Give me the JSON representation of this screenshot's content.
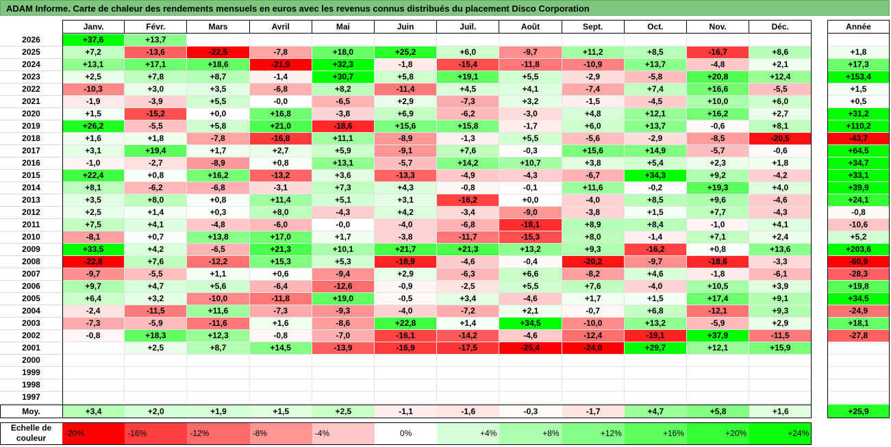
{
  "title": "ADAM Informe. Carte de chaleur des rendements mensuels en euros avec les revenus connus distribués du placement Disco Corporation",
  "chart_data": {
    "type": "heatmap",
    "columns": [
      "Janv.",
      "Févr.",
      "Mars",
      "Avril",
      "Mai",
      "Juin",
      "Juil.",
      "Août",
      "Sept.",
      "Oct.",
      "Nov.",
      "Déc."
    ],
    "year_column": "Année",
    "avg_row_label": "Moy.",
    "rows": [
      {
        "year": "2026",
        "months": [
          "+37,6",
          "+13,7",
          "",
          "",
          "",
          "",
          "",
          "",
          "",
          "",
          "",
          ""
        ],
        "annual": ""
      },
      {
        "year": "2025",
        "months": [
          "+7,2",
          "-13,6",
          "-22,5",
          "-7,8",
          "+18,0",
          "+25,2",
          "+6,0",
          "-9,7",
          "+11,2",
          "+8,5",
          "-16,7",
          "+8,6"
        ],
        "annual": "+1,8"
      },
      {
        "year": "2024",
        "months": [
          "+13,1",
          "+17,1",
          "+18,6",
          "-21,9",
          "+32,3",
          "-1,8",
          "-15,4",
          "-11,8",
          "-10,9",
          "+13,7",
          "-4,8",
          "+2,1"
        ],
        "annual": "+17,3"
      },
      {
        "year": "2023",
        "months": [
          "+2,5",
          "+7,8",
          "+8,7",
          "-1,4",
          "+30,7",
          "+5,8",
          "+19,1",
          "+5,5",
          "-2,9",
          "-5,8",
          "+20,8",
          "+12,4"
        ],
        "annual": "+153,4"
      },
      {
        "year": "2022",
        "months": [
          "-10,3",
          "+3,0",
          "+3,5",
          "-6,8",
          "+8,2",
          "-11,4",
          "+4,5",
          "+4,1",
          "-7,4",
          "+7,4",
          "+16,6",
          "-5,5"
        ],
        "annual": "+1,5"
      },
      {
        "year": "2021",
        "months": [
          "-1,9",
          "-3,9",
          "+5,5",
          "-0,0",
          "-6,5",
          "+2,9",
          "-7,3",
          "+3,2",
          "-1,5",
          "-4,5",
          "+10,0",
          "+6,0"
        ],
        "annual": "+0,5"
      },
      {
        "year": "2020",
        "months": [
          "+1,5",
          "-15,2",
          "+0,0",
          "+16,8",
          "-3,8",
          "+6,9",
          "-6,2",
          "-3,0",
          "+4,8",
          "+12,1",
          "+16,2",
          "+2,7"
        ],
        "annual": "+31,2"
      },
      {
        "year": "2019",
        "months": [
          "+26,2",
          "-5,5",
          "+5,8",
          "+21,0",
          "-18,6",
          "+15,6",
          "+15,8",
          "-1,7",
          "+6,0",
          "+13,7",
          "-0,6",
          "+8,1"
        ],
        "annual": "+110,2"
      },
      {
        "year": "2018",
        "months": [
          "+1,6",
          "+1,8",
          "-7,8",
          "-16,8",
          "+11,1",
          "-8,9",
          "-1,3",
          "+5,5",
          "-5,6",
          "-2,9",
          "-8,5",
          "-20,5"
        ],
        "annual": "-43,7"
      },
      {
        "year": "2017",
        "months": [
          "+3,1",
          "+19,4",
          "+1,7",
          "+2,7",
          "+5,9",
          "-9,1",
          "+7,6",
          "-0,3",
          "+15,6",
          "+14,9",
          "-5,7",
          "-0,6"
        ],
        "annual": "+64,5"
      },
      {
        "year": "2016",
        "months": [
          "-1,0",
          "-2,7",
          "-8,9",
          "+0,8",
          "+13,1",
          "-5,7",
          "+14,2",
          "+10,7",
          "+3,8",
          "+5,4",
          "+2,3",
          "+1,8"
        ],
        "annual": "+34,7"
      },
      {
        "year": "2015",
        "months": [
          "+22,4",
          "+0,8",
          "+16,2",
          "-13,2",
          "+3,6",
          "-13,3",
          "-4,9",
          "-4,3",
          "-6,7",
          "+34,3",
          "+9,2",
          "-4,2"
        ],
        "annual": "+33,1"
      },
      {
        "year": "2014",
        "months": [
          "+8,1",
          "-6,2",
          "-6,8",
          "-3,1",
          "+7,3",
          "+4,3",
          "-0,8",
          "-0,1",
          "+11,6",
          "-0,2",
          "+19,3",
          "+4,0"
        ],
        "annual": "+39,9"
      },
      {
        "year": "2013",
        "months": [
          "+3,5",
          "+8,0",
          "+0,8",
          "+11,4",
          "+5,1",
          "+3,1",
          "-16,2",
          "+0,0",
          "-4,0",
          "+8,5",
          "+9,6",
          "-4,6"
        ],
        "annual": "+24,1"
      },
      {
        "year": "2012",
        "months": [
          "+2,5",
          "+1,4",
          "+0,3",
          "+8,0",
          "-4,3",
          "+4,2",
          "-3,4",
          "-9,0",
          "-3,8",
          "+1,5",
          "+7,7",
          "-4,3"
        ],
        "annual": "-0,8"
      },
      {
        "year": "2011",
        "months": [
          "+7,5",
          "+4,1",
          "-4,8",
          "-6,0",
          "-0,0",
          "-4,0",
          "-6,8",
          "-18,1",
          "+8,9",
          "+8,4",
          "-1,0",
          "+4,1"
        ],
        "annual": "-10,6"
      },
      {
        "year": "2010",
        "months": [
          "-8,1",
          "+0,7",
          "+13,8",
          "+17,0",
          "+1,7",
          "-3,8",
          "-11,7",
          "-15,3",
          "+8,0",
          "-1,4",
          "+7,1",
          "+2,4"
        ],
        "annual": "+5,2"
      },
      {
        "year": "2009",
        "months": [
          "+33,5",
          "+4,2",
          "-6,5",
          "+21,3",
          "+10,1",
          "+21,7",
          "+21,3",
          "+13,2",
          "+9,3",
          "-16,2",
          "+0,8",
          "+13,6"
        ],
        "annual": "+203,6"
      },
      {
        "year": "2008",
        "months": [
          "-22,8",
          "+7,6",
          "-12,2",
          "+15,3",
          "+5,3",
          "-18,9",
          "-4,6",
          "-0,4",
          "-20,2",
          "-9,7",
          "-18,6",
          "-3,3"
        ],
        "annual": "-60,9"
      },
      {
        "year": "2007",
        "months": [
          "-9,7",
          "-5,5",
          "+1,1",
          "+0,6",
          "-9,4",
          "+2,9",
          "-6,3",
          "+6,6",
          "-8,2",
          "+4,6",
          "-1,8",
          "-6,1"
        ],
        "annual": "-28,3"
      },
      {
        "year": "2006",
        "months": [
          "+9,7",
          "+4,7",
          "+5,6",
          "-6,4",
          "-12,6",
          "-0,9",
          "-2,5",
          "+5,5",
          "+7,6",
          "-4,0",
          "+10,5",
          "+3,9"
        ],
        "annual": "+19,8"
      },
      {
        "year": "2005",
        "months": [
          "+6,4",
          "+3,2",
          "-10,0",
          "-11,8",
          "+19,0",
          "-0,5",
          "+3,4",
          "-4,6",
          "+1,7",
          "+1,5",
          "+17,4",
          "+9,1"
        ],
        "annual": "+34,5"
      },
      {
        "year": "2004",
        "months": [
          "-2,4",
          "-11,5",
          "+11,6",
          "-7,3",
          "-9,3",
          "-4,0",
          "-7,2",
          "+2,1",
          "-0,7",
          "+6,8",
          "-12,1",
          "+9,3"
        ],
        "annual": "-24,9"
      },
      {
        "year": "2003",
        "months": [
          "-7,3",
          "-5,9",
          "-11,6",
          "+1,6",
          "-8,6",
          "+22,8",
          "+1,4",
          "+34,5",
          "-10,0",
          "+13,2",
          "-5,9",
          "+2,9"
        ],
        "annual": "+18,1"
      },
      {
        "year": "2002",
        "months": [
          "-0,8",
          "+18,3",
          "+12,3",
          "-0,8",
          "-7,0",
          "-16,1",
          "-14,2",
          "-4,6",
          "-12,4",
          "-19,1",
          "+37,9",
          "-11,5"
        ],
        "annual": "-27,8"
      },
      {
        "year": "2001",
        "months": [
          "",
          "+2,5",
          "+8,7",
          "+14,5",
          "-13,9",
          "-16,9",
          "-17,5",
          "-25,4",
          "-24,0",
          "+29,7",
          "+12,1",
          "+15,9"
        ],
        "annual": ""
      },
      {
        "year": "2000",
        "months": [
          "",
          "",
          "",
          "",
          "",
          "",
          "",
          "",
          "",
          "",
          "",
          ""
        ],
        "annual": ""
      },
      {
        "year": "1999",
        "months": [
          "",
          "",
          "",
          "",
          "",
          "",
          "",
          "",
          "",
          "",
          "",
          ""
        ],
        "annual": ""
      },
      {
        "year": "1998",
        "months": [
          "",
          "",
          "",
          "",
          "",
          "",
          "",
          "",
          "",
          "",
          "",
          ""
        ],
        "annual": ""
      },
      {
        "year": "1997",
        "months": [
          "",
          "",
          "",
          "",
          "",
          "",
          "",
          "",
          "",
          "",
          "",
          ""
        ],
        "annual": ""
      }
    ],
    "averages": {
      "months": [
        "+3,4",
        "+2,0",
        "+1,9",
        "+1,5",
        "+2,5",
        "-1,1",
        "-1,6",
        "-0,3",
        "-1,7",
        "+4,7",
        "+5,8",
        "+1,6"
      ],
      "annual": "+25,9"
    },
    "color_scale": {
      "label": "Echelle de couleur",
      "stops": [
        "-20%",
        "-16%",
        "-12%",
        "-8%",
        "-4%",
        "0%",
        "+4%",
        "+8%",
        "+12%",
        "+16%",
        "+20%",
        "+24%"
      ],
      "colors": [
        "#ff0000",
        "#ff4040",
        "#ff6a6a",
        "#ff9595",
        "#ffc6c6",
        "#ffffff",
        "#d6ffd6",
        "#adffad",
        "#85ff85",
        "#5cff5c",
        "#34ff34",
        "#0bff0b"
      ],
      "negative_color": "#ff0000",
      "positive_color": "#00ff00",
      "neutral_color": "#ffffff"
    }
  }
}
